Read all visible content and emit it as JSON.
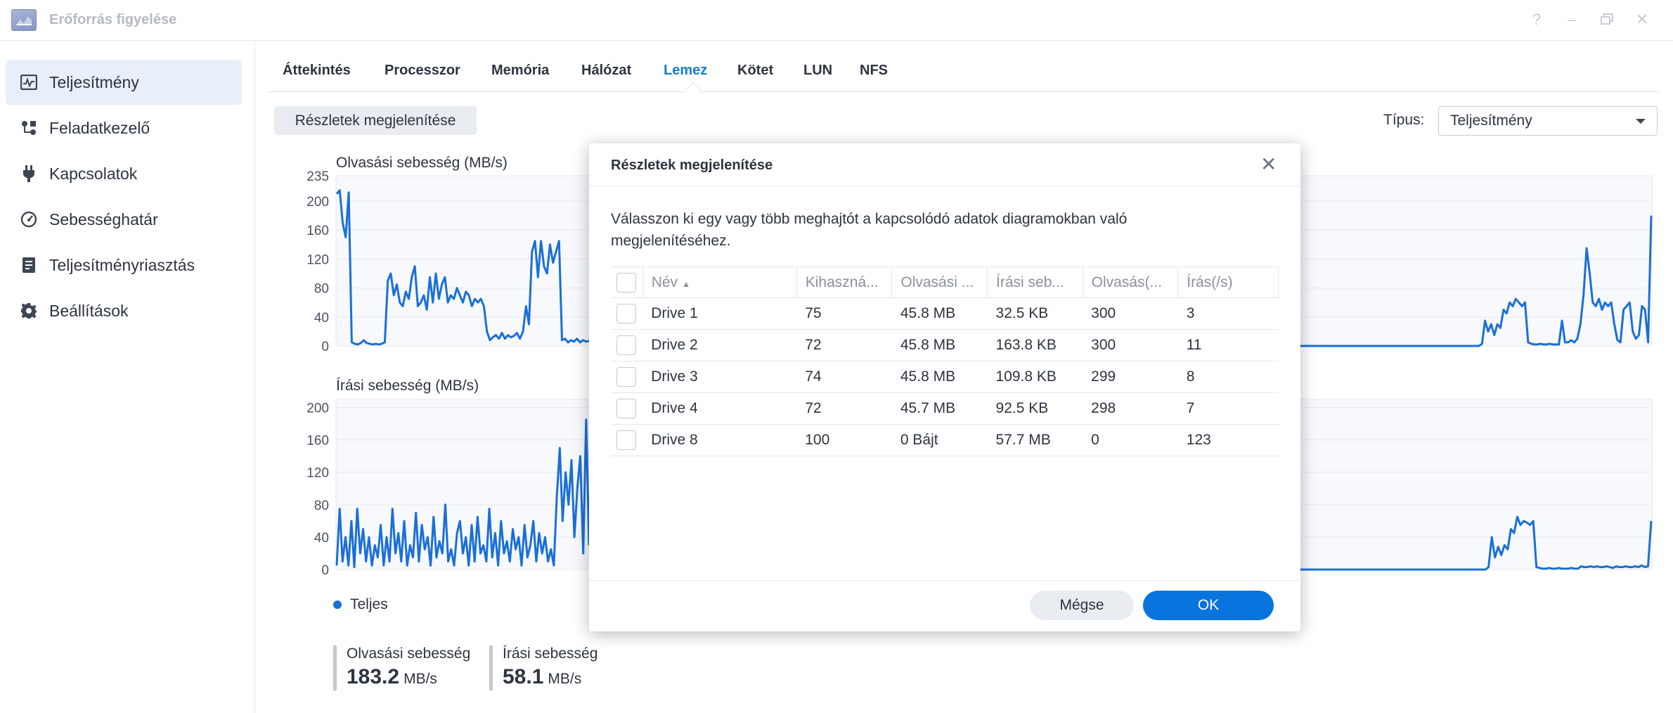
{
  "window": {
    "title": "Erőforrás figyelése",
    "help_icon": "question-icon",
    "minimize_icon": "minimize-icon",
    "maximize_icon": "restore-icon",
    "close_icon": "close-icon"
  },
  "sidebar": {
    "items": [
      {
        "label": "Teljesítmény",
        "icon": "performance-chart-icon",
        "active": true
      },
      {
        "label": "Feladatkezelő",
        "icon": "task-manager-icon"
      },
      {
        "label": "Kapcsolatok",
        "icon": "plug-icon"
      },
      {
        "label": "Sebességhatár",
        "icon": "speedometer-icon"
      },
      {
        "label": "Teljesítményriasztás",
        "icon": "alert-list-icon"
      },
      {
        "label": "Beállítások",
        "icon": "gear-icon"
      }
    ]
  },
  "tabs": [
    {
      "label": "Áttekintés"
    },
    {
      "label": "Processzor"
    },
    {
      "label": "Memória"
    },
    {
      "label": "Hálózat"
    },
    {
      "label": "Lemez",
      "active": true
    },
    {
      "label": "Kötet"
    },
    {
      "label": "LUN"
    },
    {
      "label": "NFS"
    }
  ],
  "toolbar": {
    "details_button": "Részletek megjelenítése",
    "type_label": "Típus:",
    "type_value": "Teljesítmény"
  },
  "legend": {
    "series_name": "Teljes",
    "color": "#1a6fd8"
  },
  "stats": [
    {
      "label": "Olvasási sebesség",
      "value": "183.2",
      "unit": "MB/s"
    },
    {
      "label": "Írási sebesség",
      "value": "58.1",
      "unit": "MB/s"
    }
  ],
  "chart_data": [
    {
      "type": "line",
      "title": "Olvasási sebesség (MB/s)",
      "y_ticks": [
        0,
        40,
        80,
        120,
        160,
        200,
        235
      ],
      "ylim": [
        0,
        235
      ],
      "grid": true,
      "series_color": "#1a6fd8",
      "left_segment": [
        210,
        215,
        170,
        150,
        212,
        5,
        3,
        2,
        4,
        8,
        4,
        3,
        2,
        3,
        2,
        3,
        5,
        90,
        100,
        70,
        85,
        60,
        55,
        75,
        65,
        95,
        110,
        55,
        60,
        70,
        50,
        95,
        60,
        100,
        65,
        85,
        95,
        60,
        70,
        65,
        80,
        70,
        60,
        75,
        70,
        55,
        65,
        60,
        65,
        55,
        20,
        8,
        12,
        15,
        10,
        18,
        10,
        15,
        12,
        14,
        18,
        10,
        20,
        55,
        30,
        130,
        145,
        95,
        145,
        110,
        100,
        140,
        115,
        130,
        145,
        8,
        10,
        5,
        8,
        6,
        10,
        5,
        8,
        6,
        7
      ],
      "right_segment": [
        0,
        0,
        0,
        0,
        0,
        0,
        0,
        0,
        0,
        0,
        0,
        0,
        0,
        0,
        0,
        0,
        0,
        0,
        0,
        0,
        0,
        0,
        0,
        0,
        0,
        0,
        0,
        0,
        0,
        0,
        0,
        0,
        0,
        0,
        0,
        0,
        0,
        0,
        0,
        0,
        0,
        0,
        0,
        0,
        0,
        0,
        0,
        0,
        0,
        0,
        0,
        0,
        0,
        0,
        0,
        0,
        0,
        0,
        0,
        3,
        35,
        20,
        30,
        15,
        30,
        25,
        50,
        45,
        60,
        55,
        65,
        60,
        55,
        60,
        5,
        3,
        2,
        2,
        3,
        2,
        2,
        3,
        2,
        2,
        2,
        35,
        5,
        5,
        8,
        5,
        10,
        30,
        70,
        135,
        100,
        60,
        55,
        65,
        50,
        60,
        55,
        60,
        30,
        8,
        5,
        50,
        55,
        60,
        20,
        10,
        15,
        55,
        50,
        5,
        180
      ]
    },
    {
      "type": "line",
      "title": "Írási sebesség (MB/s)",
      "y_ticks": [
        0,
        40,
        80,
        120,
        160,
        200
      ],
      "ylim": [
        0,
        210
      ],
      "grid": true,
      "series_color": "#1a6fd8",
      "left_segment": [
        5,
        75,
        10,
        40,
        5,
        60,
        3,
        75,
        20,
        50,
        10,
        40,
        5,
        30,
        15,
        55,
        5,
        40,
        10,
        75,
        20,
        45,
        10,
        60,
        5,
        30,
        15,
        70,
        10,
        55,
        25,
        40,
        5,
        65,
        15,
        35,
        20,
        80,
        10,
        25,
        5,
        45,
        60,
        20,
        40,
        5,
        55,
        10,
        65,
        20,
        30,
        10,
        75,
        15,
        45,
        5,
        60,
        20,
        35,
        10,
        50,
        25,
        40,
        5,
        55,
        15,
        30,
        60,
        10,
        45,
        20,
        40,
        10,
        25,
        5,
        90,
        150,
        60,
        120,
        80,
        135,
        40,
        100,
        140,
        20,
        185,
        30
      ]
    }
  ],
  "dialog": {
    "title": "Részletek megjelenítése",
    "close_icon": "close-icon",
    "description": "Válasszon ki egy vagy több meghajtót a kapcsolódó adatok diagramokban való megjelenítéséhez.",
    "columns": [
      "Név",
      "Kihasználtság",
      "Olvasási sebesség",
      "Írási sebesség",
      "Olvasás(/s)",
      "Írás(/s)"
    ],
    "column_display": [
      "Név",
      "Kihaszná...",
      "Olvasási ...",
      "Írási seb...",
      "Olvasás(...",
      "Írás(/s)"
    ],
    "rows": [
      {
        "name": "Drive 1",
        "utilization": "75",
        "read": "45.8 MB",
        "write": "32.5 KB",
        "read_ops": "300",
        "write_ops": "3"
      },
      {
        "name": "Drive 2",
        "utilization": "72",
        "read": "45.8 MB",
        "write": "163.8 KB",
        "read_ops": "300",
        "write_ops": "11"
      },
      {
        "name": "Drive 3",
        "utilization": "74",
        "read": "45.8 MB",
        "write": "109.8 KB",
        "read_ops": "299",
        "write_ops": "8"
      },
      {
        "name": "Drive 4",
        "utilization": "72",
        "read": "45.7 MB",
        "write": "92.5 KB",
        "read_ops": "298",
        "write_ops": "7"
      },
      {
        "name": "Drive 8",
        "utilization": "100",
        "read": "0 Bájt",
        "write": "57.7 MB",
        "read_ops": "0",
        "write_ops": "123"
      }
    ],
    "cancel_label": "Mégse",
    "ok_label": "OK"
  }
}
